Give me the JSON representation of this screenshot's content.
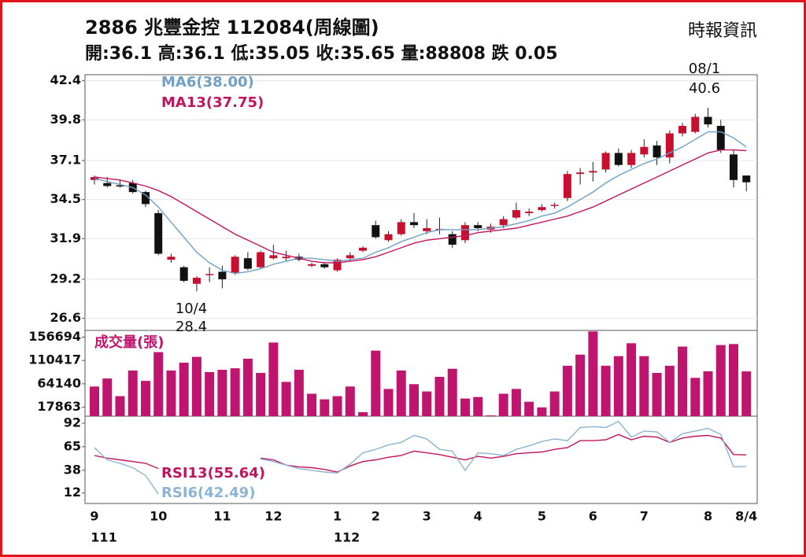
{
  "header": {
    "title": "2886 兆豐金控 112084(周線圖)",
    "source": "時報資訊",
    "summary": "開:36.1 高:36.1 低:35.05 收:35.65 量:88808 跌 0.05"
  },
  "chart_data": [
    {
      "type": "candlestick",
      "categories": [
        "9",
        null,
        null,
        null,
        null,
        "10",
        null,
        null,
        null,
        null,
        "11",
        null,
        null,
        null,
        "12",
        null,
        null,
        null,
        null,
        "1",
        null,
        null,
        "2",
        null,
        null,
        null,
        "3",
        null,
        null,
        null,
        "4",
        null,
        null,
        null,
        null,
        "5",
        null,
        null,
        null,
        "6",
        null,
        null,
        null,
        "7",
        null,
        null,
        null,
        null,
        "8",
        null,
        null,
        "8/4"
      ],
      "era_labels": [
        "111",
        "112"
      ],
      "open": [
        35.8,
        35.6,
        35.45,
        35.6,
        35.0,
        33.6,
        30.5,
        30.0,
        28.9,
        29.5,
        29.7,
        29.6,
        30.6,
        30.0,
        30.6,
        30.6,
        30.7,
        30.1,
        30.2,
        29.8,
        30.6,
        31.1,
        32.8,
        31.8,
        32.2,
        33.0,
        32.4,
        32.5,
        32.2,
        31.8,
        32.8,
        32.5,
        32.8,
        33.3,
        33.6,
        33.8,
        34.1,
        34.6,
        36.2,
        36.3,
        36.5,
        37.6,
        36.8,
        37.5,
        38.1,
        37.3,
        38.9,
        39.0,
        40.0,
        39.4,
        37.5,
        36.1
      ],
      "high": [
        36.1,
        36.0,
        35.8,
        35.8,
        35.1,
        33.8,
        30.9,
        30.1,
        29.4,
        30.0,
        30.1,
        30.8,
        31.0,
        31.1,
        31.5,
        31.1,
        30.9,
        30.3,
        30.3,
        30.6,
        31.0,
        31.4,
        33.1,
        32.4,
        33.2,
        33.6,
        33.2,
        33.3,
        32.4,
        33.0,
        33.0,
        32.9,
        33.4,
        34.3,
        33.9,
        34.2,
        34.3,
        36.4,
        36.6,
        37.0,
        37.7,
        37.9,
        37.8,
        38.5,
        38.4,
        39.1,
        39.6,
        40.2,
        40.6,
        39.8,
        37.8,
        36.1
      ],
      "low": [
        35.5,
        35.3,
        35.3,
        34.9,
        34.0,
        30.8,
        30.3,
        29.0,
        28.4,
        29.0,
        28.6,
        29.5,
        29.8,
        29.9,
        30.5,
        30.4,
        30.4,
        30.0,
        29.9,
        29.7,
        30.4,
        31.0,
        31.9,
        31.7,
        32.1,
        32.6,
        32.2,
        32.2,
        31.3,
        31.6,
        32.4,
        32.3,
        32.6,
        33.2,
        33.4,
        33.7,
        33.9,
        34.4,
        35.5,
        35.7,
        36.3,
        36.7,
        36.6,
        37.3,
        36.8,
        36.9,
        38.7,
        38.9,
        39.3,
        37.6,
        35.3,
        35.05
      ],
      "close": [
        36.0,
        35.4,
        35.4,
        35.0,
        34.2,
        30.9,
        30.7,
        29.1,
        29.3,
        29.55,
        29.2,
        30.7,
        29.9,
        31.0,
        30.8,
        30.7,
        30.5,
        30.2,
        30.0,
        30.5,
        30.8,
        31.3,
        32.0,
        32.2,
        33.0,
        32.8,
        32.6,
        32.55,
        31.5,
        32.8,
        32.6,
        32.7,
        33.2,
        33.8,
        33.7,
        34.0,
        34.15,
        36.2,
        36.3,
        36.4,
        37.6,
        36.8,
        37.6,
        38.0,
        37.3,
        38.9,
        39.4,
        40.0,
        39.5,
        37.8,
        35.8,
        35.65
      ],
      "up_color": "#c8102e",
      "down_color": "#111111",
      "series": [
        {
          "name": "MA6(38.00)",
          "color": "#6f9fc4",
          "values": [
            35.9,
            35.7,
            35.5,
            35.3,
            34.8,
            34.0,
            33.0,
            32.0,
            31.0,
            30.3,
            29.8,
            29.6,
            29.7,
            29.9,
            30.2,
            30.4,
            30.6,
            30.6,
            30.5,
            30.4,
            30.5,
            30.6,
            31.0,
            31.3,
            31.7,
            32.0,
            32.3,
            32.5,
            32.5,
            32.5,
            32.5,
            32.6,
            32.7,
            32.9,
            33.1,
            33.4,
            33.6,
            34.0,
            34.5,
            35.0,
            35.6,
            36.1,
            36.5,
            36.9,
            37.2,
            37.6,
            38.0,
            38.5,
            39.0,
            39.0,
            38.6,
            38.0
          ]
        },
        {
          "name": "MA13(37.75)",
          "color": "#c0155e",
          "values": [
            36.0,
            35.9,
            35.8,
            35.6,
            35.4,
            35.1,
            34.7,
            34.2,
            33.7,
            33.2,
            32.7,
            32.2,
            31.8,
            31.4,
            31.0,
            30.8,
            30.6,
            30.4,
            30.3,
            30.3,
            30.4,
            30.5,
            30.7,
            31.0,
            31.3,
            31.6,
            31.8,
            31.9,
            32.0,
            32.1,
            32.3,
            32.4,
            32.5,
            32.6,
            32.8,
            33.0,
            33.2,
            33.4,
            33.7,
            34.0,
            34.4,
            34.8,
            35.2,
            35.6,
            36.0,
            36.4,
            36.8,
            37.2,
            37.6,
            37.8,
            37.8,
            37.75
          ]
        }
      ],
      "annotations": [
        "10/4",
        "28.4",
        "08/1",
        "40.6"
      ],
      "ylim": [
        25.8,
        42.8
      ],
      "yticks": [
        42.4,
        39.8,
        37.1,
        34.5,
        31.9,
        29.2,
        26.6
      ],
      "grid": true
    },
    {
      "type": "bar",
      "title": "成交量(張)",
      "color": "#c0156e",
      "values": [
        58800,
        74700,
        39700,
        90600,
        70000,
        127000,
        90600,
        106000,
        117600,
        87400,
        92000,
        95000,
        114000,
        85800,
        146000,
        68000,
        92000,
        44500,
        33400,
        39700,
        58800,
        8000,
        130000,
        54000,
        90600,
        63500,
        49000,
        78000,
        94000,
        35000,
        38000,
        1600,
        44500,
        54000,
        28600,
        17500,
        49000,
        100000,
        122000,
        168000,
        100000,
        119000,
        144600,
        119000,
        85800,
        100000,
        138000,
        76000,
        89000,
        141000,
        143000,
        88808
      ],
      "ylim": [
        0,
        170000
      ],
      "yticks": [
        156694,
        110417,
        64140,
        17863
      ]
    },
    {
      "type": "line",
      "series": [
        {
          "name": "RSI13(55.64)",
          "color": "#c0155e",
          "values": [
            55,
            52,
            50,
            48,
            46,
            40,
            null,
            null,
            null,
            null,
            null,
            null,
            null,
            52,
            50,
            44,
            42,
            41,
            39,
            36,
            43,
            48,
            50,
            53,
            55,
            60,
            58,
            56,
            53,
            50,
            54,
            52,
            54,
            57,
            58,
            59,
            62,
            64,
            72,
            72,
            73,
            79,
            73,
            77,
            76,
            70,
            75,
            77,
            78,
            75,
            56,
            55.64
          ]
        },
        {
          "name": "RSI6(42.49)",
          "color": "#8ab4d2",
          "values": [
            64,
            50,
            46,
            41,
            32,
            11,
            null,
            null,
            null,
            null,
            null,
            null,
            null,
            51,
            48,
            44,
            40,
            38,
            36,
            35,
            45,
            58,
            62,
            67,
            70,
            78,
            74,
            62,
            60,
            38,
            58,
            57,
            55,
            62,
            66,
            71,
            74,
            72,
            87,
            88,
            87,
            94,
            76,
            83,
            82,
            70,
            80,
            83,
            86,
            79,
            42,
            42.49
          ]
        }
      ],
      "ylim": [
        0,
        100
      ],
      "yticks": [
        92,
        65,
        38,
        12
      ]
    }
  ]
}
